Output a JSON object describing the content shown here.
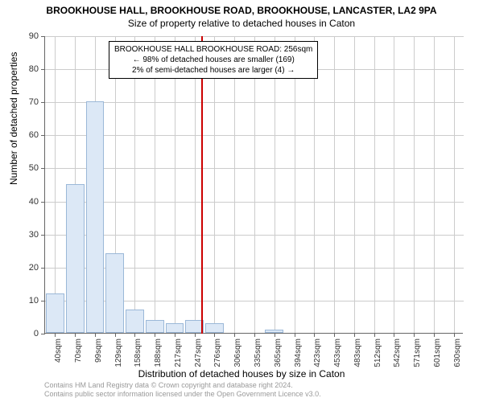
{
  "title_main": "BROOKHOUSE HALL, BROOKHOUSE ROAD, BROOKHOUSE, LANCASTER, LA2 9PA",
  "subtitle": "Size of property relative to detached houses in Caton",
  "chart": {
    "type": "bar",
    "x_categories": [
      "40sqm",
      "70sqm",
      "99sqm",
      "129sqm",
      "158sqm",
      "188sqm",
      "217sqm",
      "247sqm",
      "276sqm",
      "306sqm",
      "335sqm",
      "365sqm",
      "394sqm",
      "423sqm",
      "453sqm",
      "483sqm",
      "512sqm",
      "542sqm",
      "571sqm",
      "601sqm",
      "630sqm"
    ],
    "values": [
      12,
      45,
      70,
      24,
      7,
      4,
      3,
      4,
      3,
      0,
      0,
      1,
      0,
      0,
      0,
      0,
      0,
      0,
      0,
      0,
      0
    ],
    "bar_fill": "#dce8f6",
    "bar_border": "#9bb8d8",
    "grid_color": "#cccccc",
    "axis_color": "#666666",
    "background": "#ffffff",
    "y_max": 90,
    "y_step": 10,
    "y_label": "Number of detached properties",
    "x_label": "Distribution of detached houses by size in Caton",
    "marker_value_sqm": 256,
    "marker_color": "#cc0000"
  },
  "annotation": {
    "line1": "BROOKHOUSE HALL BROOKHOUSE ROAD: 256sqm",
    "line2": "← 98% of detached houses are smaller (169)",
    "line3": "2% of semi-detached houses are larger (4) →"
  },
  "footer": {
    "line1": "Contains HM Land Registry data © Crown copyright and database right 2024.",
    "line2": "Contains public sector information licensed under the Open Government Licence v3.0."
  }
}
